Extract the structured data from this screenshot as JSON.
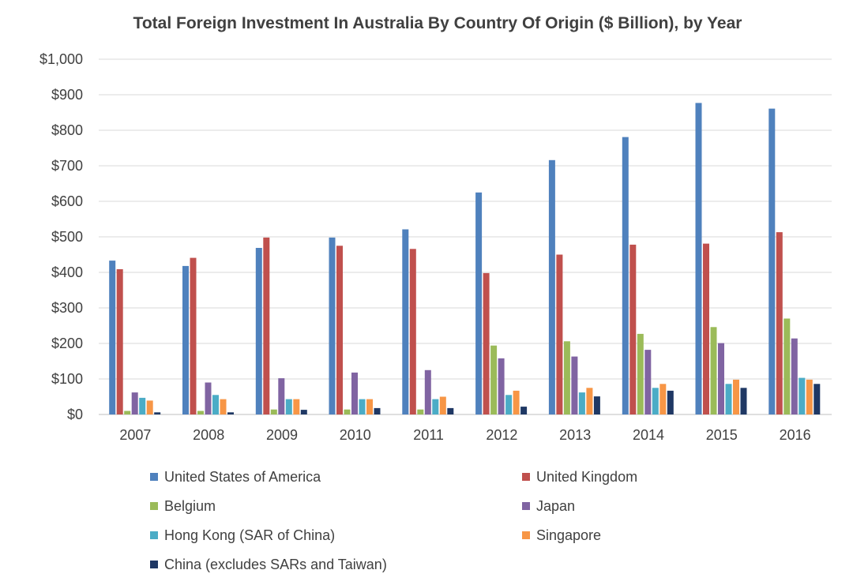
{
  "chart_data": {
    "type": "bar",
    "title": "Total Foreign Investment In Australia By Country Of Origin ($ Billion), by Year",
    "xlabel": "",
    "ylabel": "",
    "categories": [
      "2007",
      "2008",
      "2009",
      "2010",
      "2011",
      "2012",
      "2013",
      "2014",
      "2015",
      "2016"
    ],
    "ylim": [
      0,
      1000
    ],
    "yticks": [
      0,
      100,
      200,
      300,
      400,
      500,
      600,
      700,
      800,
      900,
      1000
    ],
    "ytick_labels": [
      "$0",
      "$100",
      "$200",
      "$300",
      "$400",
      "$500",
      "$600",
      "$700",
      "$800",
      "$900",
      "$1,000"
    ],
    "grid": true,
    "legend_position": "bottom",
    "series": [
      {
        "name": "United States of America",
        "color": "#4f81bd",
        "values": [
          433,
          418,
          469,
          498,
          521,
          625,
          716,
          781,
          877,
          861
        ]
      },
      {
        "name": "United Kingdom",
        "color": "#c0504d",
        "values": [
          409,
          441,
          498,
          475,
          466,
          398,
          450,
          478,
          481,
          513
        ]
      },
      {
        "name": "Belgium",
        "color": "#9bbb59",
        "values": [
          10,
          10,
          14,
          14,
          14,
          194,
          206,
          227,
          246,
          270
        ]
      },
      {
        "name": "Japan",
        "color": "#8064a2",
        "values": [
          62,
          90,
          102,
          118,
          125,
          158,
          163,
          182,
          201,
          214
        ]
      },
      {
        "name": "Hong Kong (SAR of China)",
        "color": "#4bacc6",
        "values": [
          47,
          55,
          43,
          43,
          43,
          55,
          62,
          75,
          86,
          103
        ]
      },
      {
        "name": "Singapore",
        "color": "#f79646",
        "values": [
          39,
          43,
          43,
          43,
          50,
          67,
          75,
          86,
          98,
          98
        ]
      },
      {
        "name": "China (excludes SARs and Taiwan)",
        "color": "#1f3864",
        "values": [
          6,
          6,
          13,
          18,
          18,
          22,
          51,
          67,
          75,
          86
        ]
      }
    ]
  }
}
